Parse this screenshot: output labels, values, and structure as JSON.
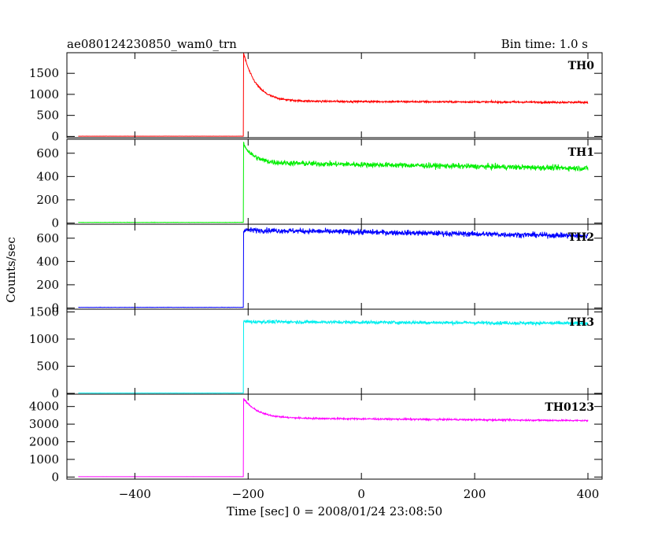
{
  "header": {
    "title": "ae080124230850_wam0_trn",
    "bin_time": "Bin time: 1.0 s"
  },
  "chart_data": {
    "type": "line",
    "title": "ae080124230850_wam0_trn",
    "xlabel": "Time [sec] 0 = 2008/01/24 23:08:50",
    "ylabel": "Counts/sec",
    "xlim": [
      -520,
      425
    ],
    "x_ticks": [
      -400,
      -200,
      0,
      200,
      400
    ],
    "x_tick_labels": [
      "−400",
      "−200",
      "0",
      "200",
      "400"
    ],
    "grid": false,
    "legend": "none",
    "panels": [
      {
        "label": "TH0",
        "color": "#ff0000",
        "ylim": [
          -30,
          1990
        ],
        "y_ticks": [
          0,
          500,
          1000,
          1500
        ],
        "y_tick_labels": [
          "0",
          "500",
          "1000",
          "1500"
        ],
        "x_range": [
          -500,
          400
        ],
        "onset": -208,
        "pre_level": 5,
        "peak": 1980,
        "decay_tau": 22,
        "plateau": 840,
        "final_level": 810,
        "noise": 22
      },
      {
        "label": "TH1",
        "color": "#00ee00",
        "ylim": [
          -10,
          720
        ],
        "y_ticks": [
          0,
          200,
          400,
          600
        ],
        "y_tick_labels": [
          "0",
          "200",
          "400",
          "600"
        ],
        "x_range": [
          -500,
          400
        ],
        "onset": -208,
        "pre_level": 5,
        "peak": 680,
        "decay_tau": 18,
        "plateau": 520,
        "final_level": 470,
        "noise": 22
      },
      {
        "label": "TH2",
        "color": "#0000ff",
        "ylim": [
          -10,
          720
        ],
        "y_ticks": [
          0,
          200,
          400,
          600
        ],
        "y_tick_labels": [
          "0",
          "200",
          "400",
          "600"
        ],
        "x_range": [
          -500,
          400
        ],
        "onset": -208,
        "pre_level": 5,
        "peak": 670,
        "decay_tau": 5,
        "plateau": 670,
        "final_level": 620,
        "noise": 22
      },
      {
        "label": "TH3",
        "color": "#00eeee",
        "ylim": [
          -15,
          1550
        ],
        "y_ticks": [
          0,
          500,
          1000,
          1500
        ],
        "y_tick_labels": [
          "0",
          "500",
          "1000",
          "1500"
        ],
        "x_range": [
          -500,
          400
        ],
        "onset": -208,
        "pre_level": 5,
        "peak": 1320,
        "decay_tau": 5,
        "plateau": 1320,
        "final_level": 1290,
        "noise": 30
      },
      {
        "label": "TH0123",
        "color": "#ff00ff",
        "ylim": [
          -120,
          4700
        ],
        "y_ticks": [
          0,
          1000,
          2000,
          3000,
          4000
        ],
        "y_tick_labels": [
          "0",
          "1000",
          "2000",
          "3000",
          "4000"
        ],
        "x_range": [
          -500,
          400
        ],
        "onset": -208,
        "pre_level": 20,
        "peak": 4450,
        "decay_tau": 25,
        "plateau": 3350,
        "final_level": 3200,
        "noise": 45
      }
    ]
  }
}
